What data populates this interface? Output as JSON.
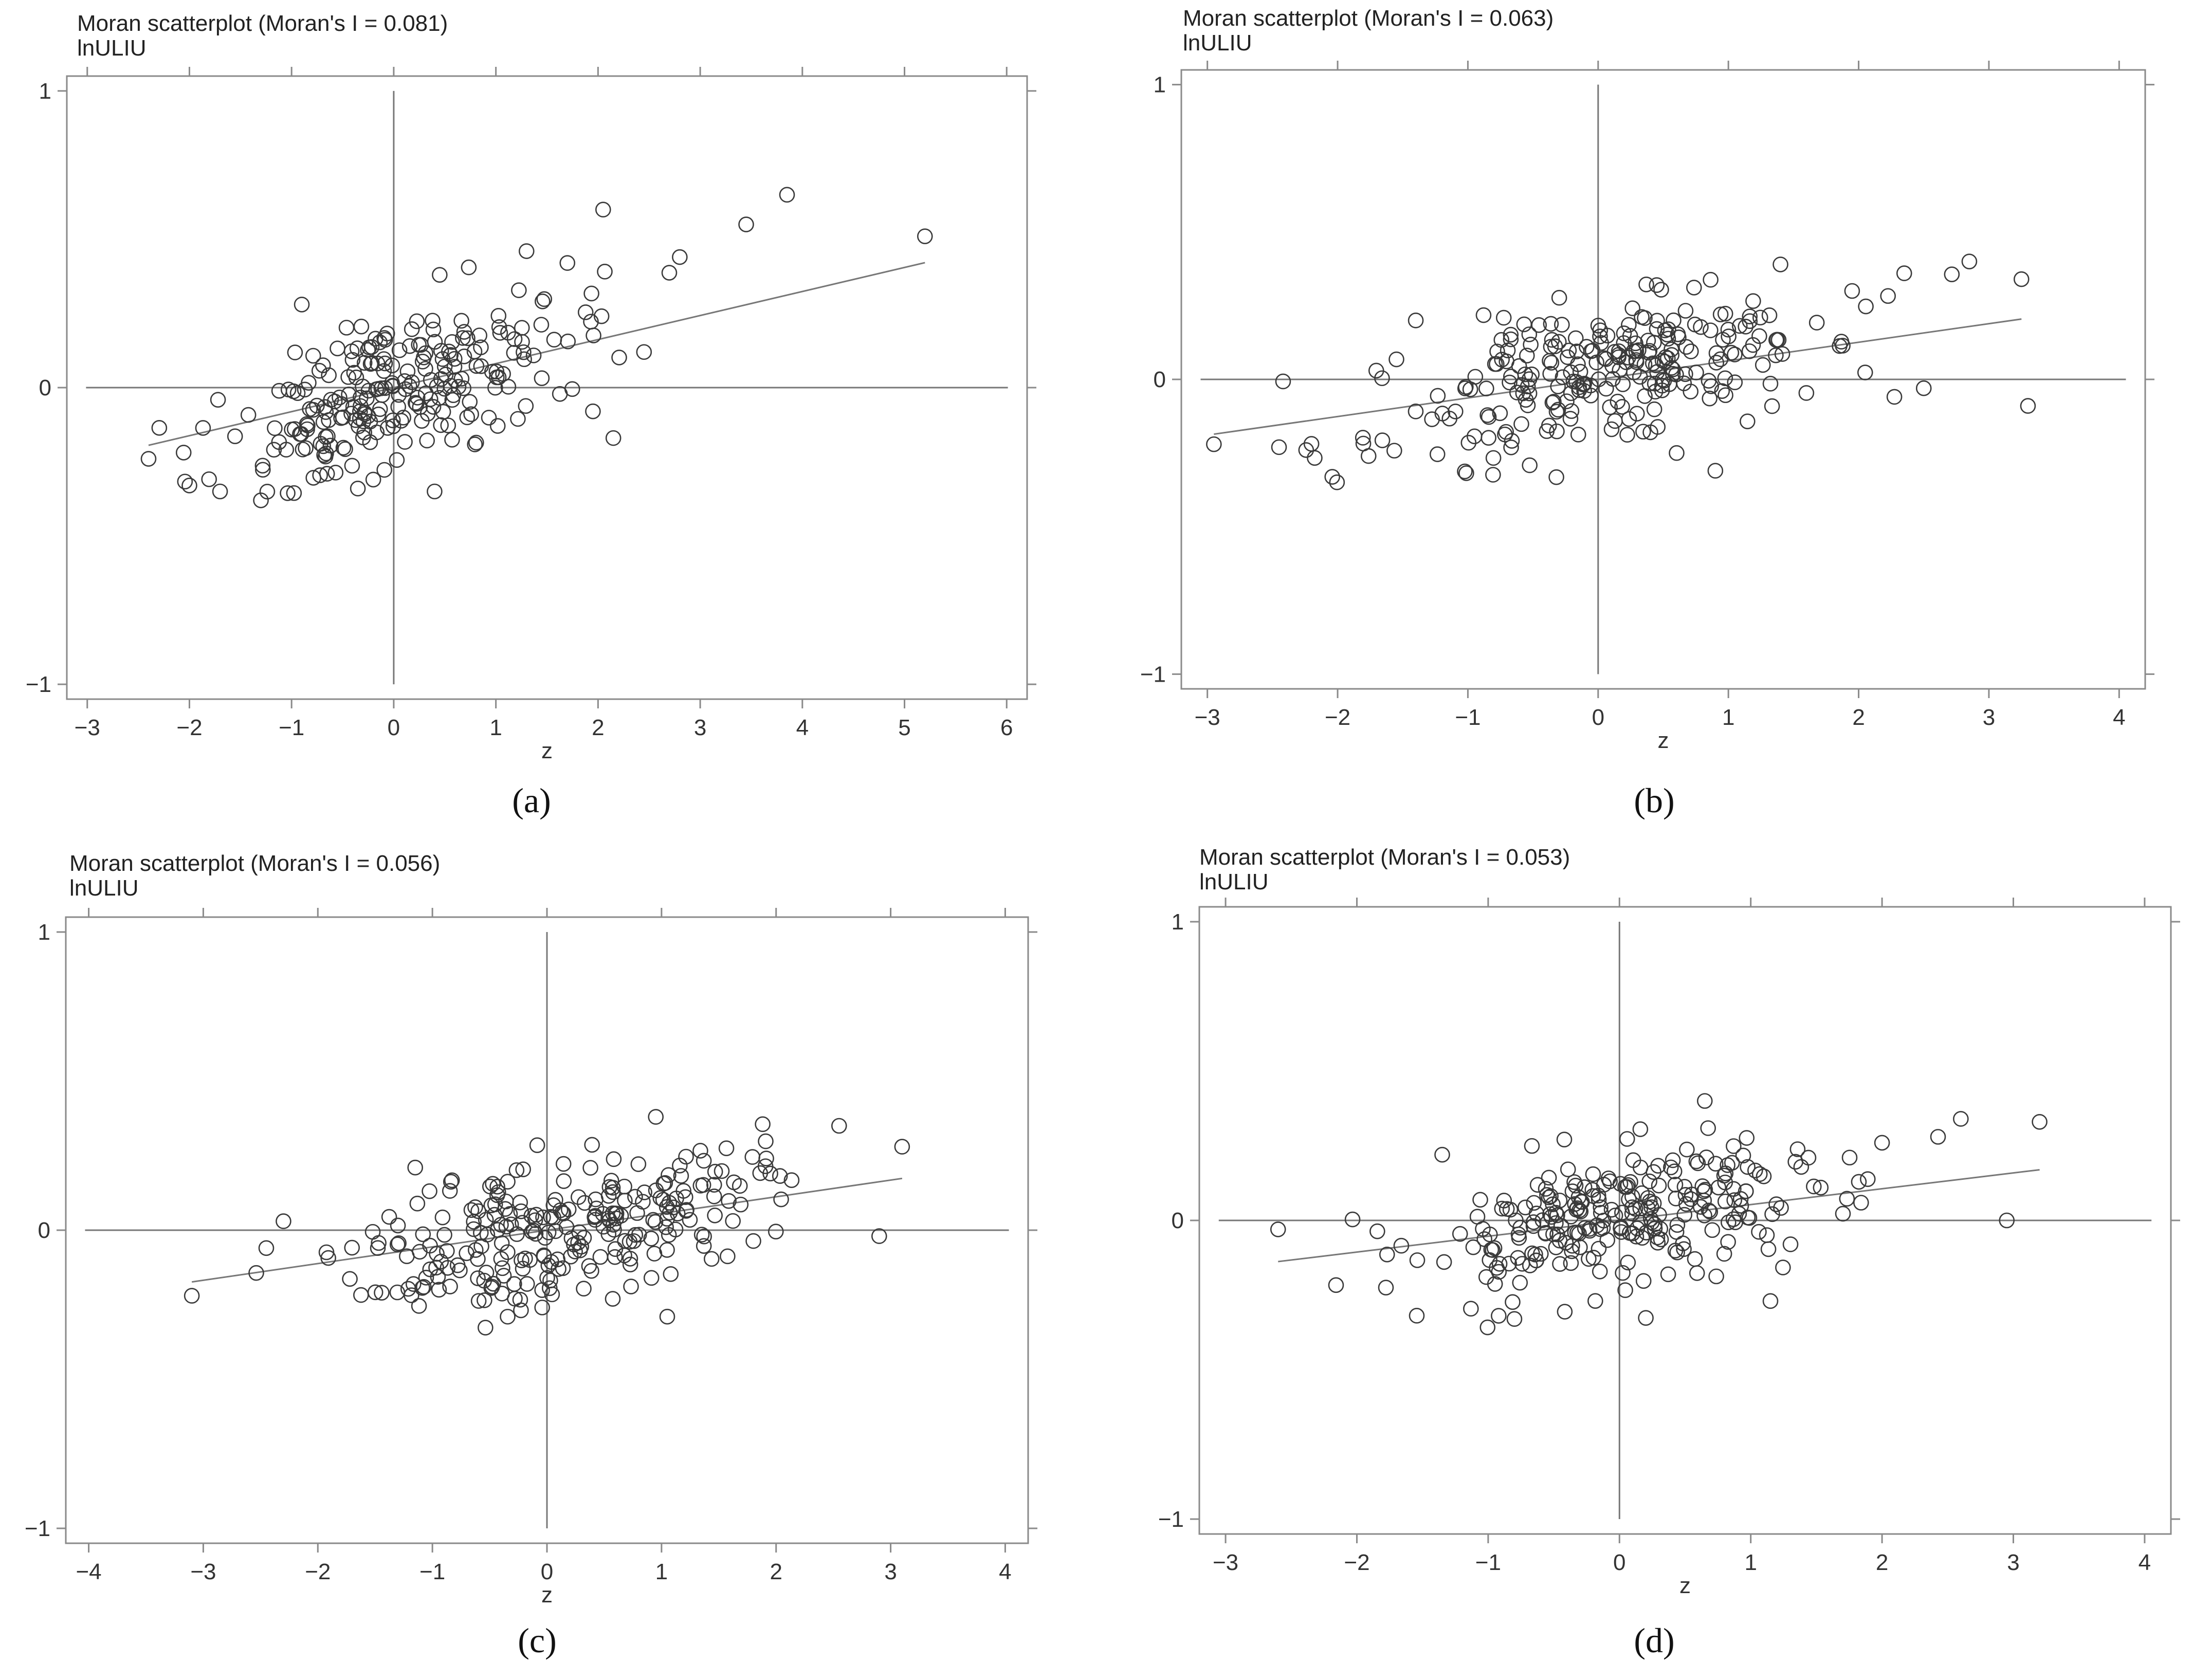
{
  "chart_data": [
    {
      "type": "scatter",
      "caption": "(a)",
      "title": "Moran scatterplot (Moran's I = 0.081)",
      "subtitle": "lnULIU",
      "xlabel": "z",
      "ylabel": "",
      "xlim": [
        -3.2,
        6.2
      ],
      "ylim": [
        -1.05,
        1.05
      ],
      "xticks": [
        -3,
        -2,
        -1,
        0,
        1,
        2,
        3,
        4,
        5,
        6
      ],
      "yticks": [
        -1,
        0,
        1
      ],
      "slope": 0.081,
      "fit_range": [
        -2.4,
        5.2
      ],
      "seed": 11,
      "n_points": 240,
      "z_range": [
        -2.4,
        5.2
      ],
      "noise": 0.13,
      "points": [
        [
          5.2,
          0.51
        ],
        [
          3.85,
          0.65
        ],
        [
          3.45,
          0.55
        ],
        [
          2.05,
          0.6
        ],
        [
          2.8,
          0.44
        ],
        [
          1.3,
          0.46
        ],
        [
          1.7,
          0.42
        ],
        [
          0.45,
          0.38
        ],
        [
          -0.9,
          0.28
        ],
        [
          2.15,
          -0.17
        ],
        [
          0.4,
          -0.35
        ],
        [
          -1.3,
          -0.38
        ],
        [
          -1.7,
          -0.35
        ],
        [
          -2.4,
          -0.24
        ],
        [
          -2.0,
          -0.33
        ],
        [
          2.45,
          0.12
        ],
        [
          1.95,
          -0.08
        ],
        [
          -0.2,
          -0.31
        ]
      ]
    },
    {
      "type": "scatter",
      "caption": "(b)",
      "title": "Moran scatterplot (Moran's I = 0.063)",
      "subtitle": "lnULIU",
      "xlabel": "z",
      "ylabel": "",
      "xlim": [
        -3.2,
        4.2
      ],
      "ylim": [
        -1.05,
        1.05
      ],
      "xticks": [
        -3,
        -2,
        -1,
        0,
        1,
        2,
        3,
        4
      ],
      "yticks": [
        -1,
        0,
        1
      ],
      "slope": 0.063,
      "fit_range": [
        -2.95,
        3.25
      ],
      "seed": 23,
      "n_points": 260,
      "z_range": [
        -2.9,
        3.3
      ],
      "noise": 0.12,
      "points": [
        [
          -2.95,
          -0.22
        ],
        [
          -2.45,
          -0.23
        ],
        [
          3.25,
          0.34
        ],
        [
          3.3,
          -0.09
        ],
        [
          2.85,
          0.4
        ],
        [
          2.35,
          0.36
        ],
        [
          2.5,
          -0.03
        ],
        [
          1.95,
          0.3
        ],
        [
          0.9,
          -0.31
        ],
        [
          0.45,
          0.32
        ],
        [
          -1.4,
          0.2
        ],
        [
          1.4,
          0.39
        ]
      ]
    },
    {
      "type": "scatter",
      "caption": "(c)",
      "title": "Moran scatterplot (Moran's I = 0.056)",
      "subtitle": "lnULIU",
      "xlabel": "z",
      "ylabel": "",
      "xlim": [
        -4.2,
        4.2
      ],
      "ylim": [
        -1.05,
        1.05
      ],
      "xticks": [
        -4,
        -3,
        -2,
        -1,
        0,
        1,
        2,
        3,
        4
      ],
      "yticks": [
        -1,
        0,
        1
      ],
      "slope": 0.056,
      "fit_range": [
        -3.1,
        3.1
      ],
      "seed": 37,
      "n_points": 260,
      "z_range": [
        -3.0,
        3.1
      ],
      "noise": 0.12,
      "points": [
        [
          -3.1,
          -0.22
        ],
        [
          -2.3,
          0.03
        ],
        [
          -2.45,
          -0.06
        ],
        [
          3.1,
          0.28
        ],
        [
          2.55,
          0.35
        ],
        [
          2.9,
          -0.02
        ],
        [
          0.95,
          0.38
        ],
        [
          1.05,
          -0.29
        ],
        [
          -1.15,
          0.21
        ],
        [
          1.95,
          0.19
        ]
      ]
    },
    {
      "type": "scatter",
      "caption": "(d)",
      "title": "Moran scatterplot (Moran's I = 0.053)",
      "subtitle": "lnULIU",
      "xlabel": "z",
      "ylabel": "",
      "xlim": [
        -3.2,
        4.2
      ],
      "ylim": [
        -1.05,
        1.05
      ],
      "xticks": [
        -3,
        -2,
        -1,
        0,
        1,
        2,
        3,
        4
      ],
      "yticks": [
        -1,
        0,
        1
      ],
      "slope": 0.053,
      "fit_range": [
        -2.6,
        3.2
      ],
      "seed": 53,
      "n_points": 260,
      "z_range": [
        -2.5,
        3.2
      ],
      "noise": 0.12,
      "points": [
        [
          -2.6,
          -0.03
        ],
        [
          3.2,
          0.33
        ],
        [
          2.6,
          0.34
        ],
        [
          2.95,
          0.0
        ],
        [
          0.65,
          0.4
        ],
        [
          -1.35,
          0.22
        ],
        [
          1.15,
          -0.27
        ],
        [
          -0.8,
          -0.33
        ],
        [
          2.0,
          0.26
        ]
      ]
    }
  ]
}
